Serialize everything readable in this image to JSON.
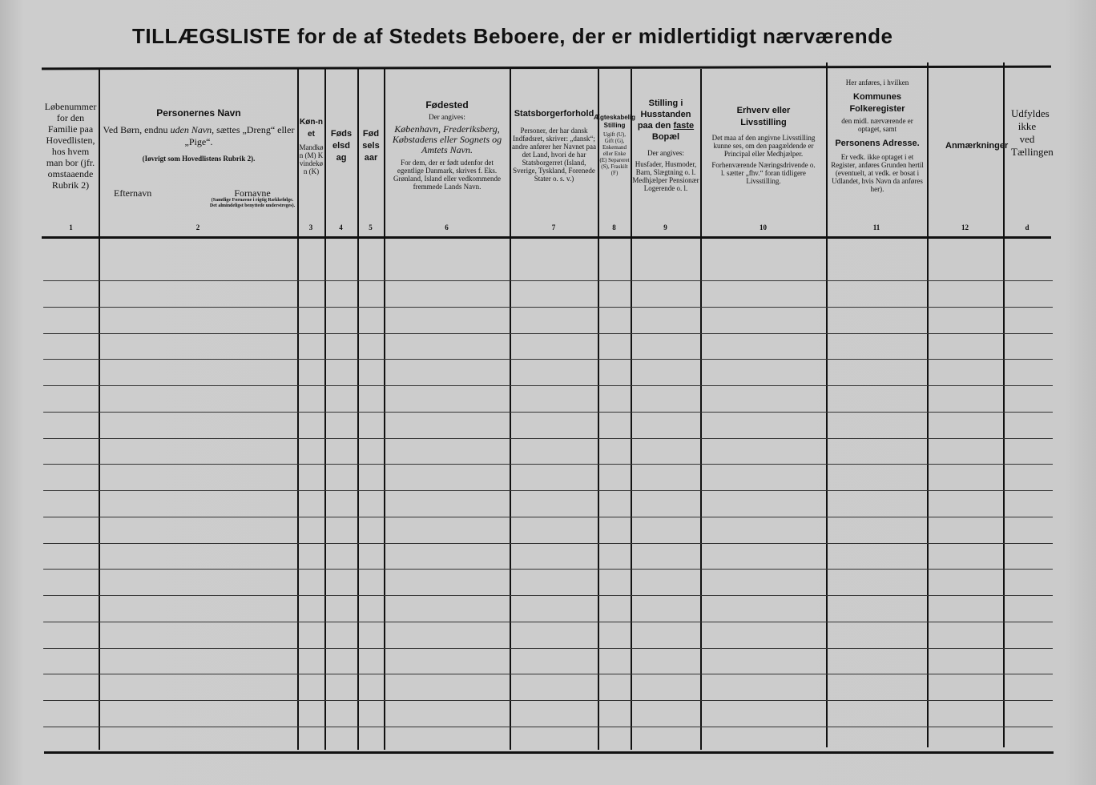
{
  "title": "TILLÆGSLISTE for de af Stedets Beboere, der er midlertidigt nærværende",
  "columns": [
    {
      "number": "1",
      "text": "Løbenummer for den Familie paa Hovedlisten, hos hvem man bor (jfr. omstaaende Rubrik 2)"
    },
    {
      "number": "2",
      "heading": "Personernes Navn",
      "text": "Ved Børn, endnu",
      "text_italic": "uden Navn,",
      "text2": "sættes „Dreng“ eller „Pige“.",
      "note": "(Iøvrigt som Hovedlistens Rubrik 2).",
      "sub_left": "Efternavn",
      "sub_right": "Fornavne",
      "sub_right_note": "(Samtlige Fornavne i rigtig Rækkefølge. Det almindeligst benyttede understreges)."
    },
    {
      "number": "3",
      "heading": "Køn-net",
      "text": "Mandkøn (M) Kvindekøn (K)"
    },
    {
      "number": "4",
      "heading": "Fødselsdag"
    },
    {
      "number": "5",
      "heading": "Fødselsaar"
    },
    {
      "number": "6",
      "heading": "Fødested",
      "sub": "Der angives:",
      "italic": "København, Frederiksberg, Købstadens eller Sognets og Amtets Navn.",
      "text": "For dem, der er født udenfor det egentlige Danmark, skrives f. Eks. Grønland, Island eller vedkommende fremmede Lands Navn."
    },
    {
      "number": "7",
      "heading": "Statsborgerforhold",
      "text": "Personer, der har dansk Indfødsret, skriver: „dansk“; andre anfører her Navnet paa det Land, hvori de har Statsborgerret (Island, Sverige, Tyskland, Forenede Stater o. s. v.)"
    },
    {
      "number": "8",
      "heading": "Ægteskabelig Stilling",
      "text": "Ugift (U), Gift (G), Enkemand eller Enke (E) Separeret (S), Fraskilt (F)"
    },
    {
      "number": "9",
      "heading": "Stilling i Husstanden paa den",
      "heading_underlined": "faste",
      "heading2": "Bopæl",
      "sub": "Der angives:",
      "text": "Husfader, Husmoder, Barn, Slægtning o. l. Medhjælper Pensionær Logerende o. l."
    },
    {
      "number": "10",
      "heading": "Erhverv eller Livsstilling",
      "text": "Det maa af den angivne Livsstilling kunne ses, om den paagældende er Principal eller Medhjælper.",
      "text2": "Forhenværende Næringsdrivende o. l. sætter „fhv.“ foran tidligere Livsstilling."
    },
    {
      "number": "11",
      "pre": "Her anføres, i hvilken",
      "heading": "Kommunes Folkeregister",
      "text": "den midl. nærværende er optaget, samt",
      "heading2": "Personens Adresse.",
      "text2": "Er vedk. ikke optaget i et Register, anføres Grunden hertil (eventuelt, at vedk. er bosat i Udlandet, hvis Navn da anføres her)."
    },
    {
      "number": "12",
      "heading": "Anmærkninger"
    },
    {
      "number": "d",
      "text": "Udfyldes ikke ved Tællingen"
    }
  ],
  "rows": 18
}
